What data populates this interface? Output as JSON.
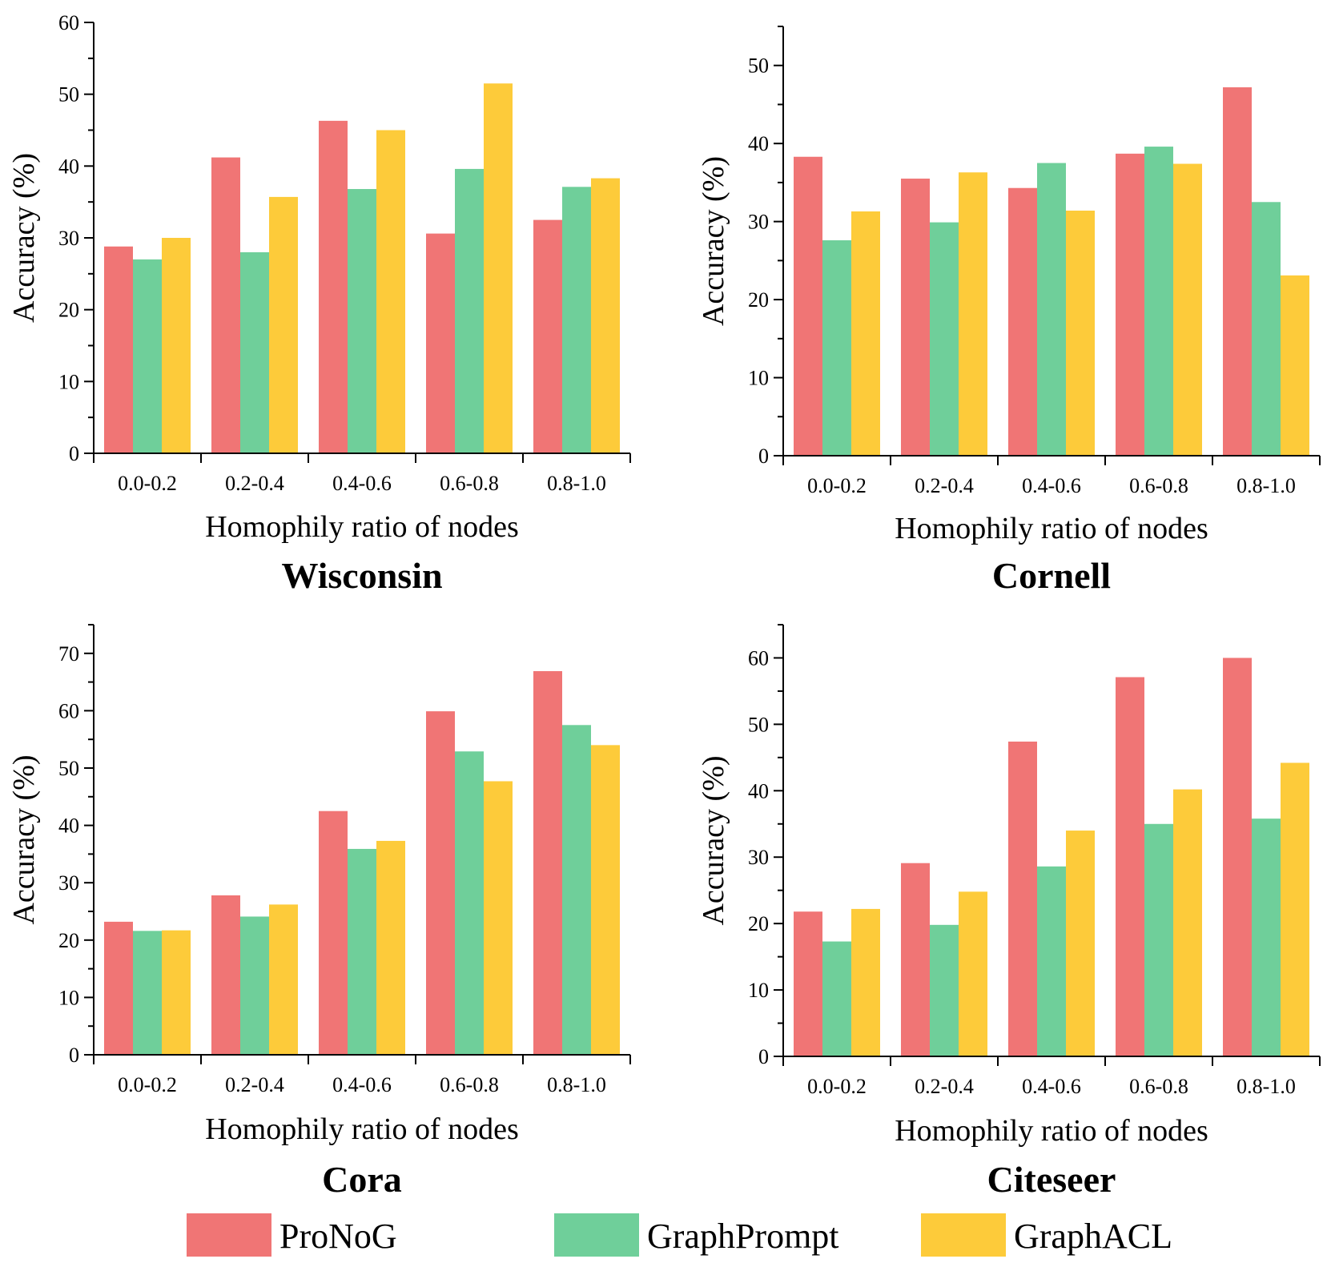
{
  "colors": {
    "ProNoG": "#F07575",
    "GraphPrompt": "#6FCF9A",
    "GraphACL": "#FDCB3A",
    "axis": "#000000"
  },
  "legend": [
    "ProNoG",
    "GraphPrompt",
    "GraphACL"
  ],
  "chart_data": [
    {
      "type": "bar",
      "title": "Wisconsin",
      "xlabel": "Homophily ratio of nodes",
      "ylabel": "Accuracy (%)",
      "categories": [
        "0.0-0.2",
        "0.2-0.4",
        "0.4-0.6",
        "0.6-0.8",
        "0.8-1.0"
      ],
      "ylim": [
        0,
        60
      ],
      "yticks": [
        0,
        10,
        20,
        30,
        40,
        50,
        60
      ],
      "series": [
        {
          "name": "ProNoG",
          "values": [
            28.8,
            41.2,
            46.3,
            30.6,
            32.5
          ]
        },
        {
          "name": "GraphPrompt",
          "values": [
            27.0,
            28.0,
            36.8,
            39.6,
            37.1
          ]
        },
        {
          "name": "GraphACL",
          "values": [
            30.0,
            35.7,
            45.0,
            51.5,
            38.3
          ]
        }
      ]
    },
    {
      "type": "bar",
      "title": "Cornell",
      "xlabel": "Homophily ratio of nodes",
      "ylabel": "Accuracy (%)",
      "categories": [
        "0.0-0.2",
        "0.2-0.4",
        "0.4-0.6",
        "0.6-0.8",
        "0.8-1.0"
      ],
      "ylim": [
        0,
        55
      ],
      "yticks": [
        0,
        10,
        20,
        30,
        40,
        50
      ],
      "series": [
        {
          "name": "ProNoG",
          "values": [
            38.3,
            35.5,
            34.3,
            38.7,
            47.2
          ]
        },
        {
          "name": "GraphPrompt",
          "values": [
            27.6,
            29.9,
            37.5,
            39.6,
            32.5
          ]
        },
        {
          "name": "GraphACL",
          "values": [
            31.3,
            36.3,
            31.4,
            37.4,
            23.1
          ]
        }
      ]
    },
    {
      "type": "bar",
      "title": "Cora",
      "xlabel": "Homophily ratio of nodes",
      "ylabel": "Accuracy (%)",
      "categories": [
        "0.0-0.2",
        "0.2-0.4",
        "0.4-0.6",
        "0.6-0.8",
        "0.8-1.0"
      ],
      "ylim": [
        0,
        75
      ],
      "yticks": [
        0,
        10,
        20,
        30,
        40,
        50,
        60,
        70
      ],
      "series": [
        {
          "name": "ProNoG",
          "values": [
            23.2,
            27.8,
            42.5,
            59.9,
            66.9
          ]
        },
        {
          "name": "GraphPrompt",
          "values": [
            21.6,
            24.1,
            35.9,
            52.9,
            57.5
          ]
        },
        {
          "name": "GraphACL",
          "values": [
            21.7,
            26.2,
            37.3,
            47.7,
            54.0
          ]
        }
      ]
    },
    {
      "type": "bar",
      "title": "Citeseer",
      "xlabel": "Homophily ratio of nodes",
      "ylabel": "Accuracy (%)",
      "categories": [
        "0.0-0.2",
        "0.2-0.4",
        "0.4-0.6",
        "0.6-0.8",
        "0.8-1.0"
      ],
      "ylim": [
        0,
        65
      ],
      "yticks": [
        0,
        10,
        20,
        30,
        40,
        50,
        60
      ],
      "series": [
        {
          "name": "ProNoG",
          "values": [
            21.8,
            29.1,
            47.4,
            57.1,
            60.0
          ]
        },
        {
          "name": "GraphPrompt",
          "values": [
            17.3,
            19.8,
            28.6,
            35.0,
            35.8
          ]
        },
        {
          "name": "GraphACL",
          "values": [
            22.2,
            24.8,
            34.0,
            40.2,
            44.2
          ]
        }
      ]
    }
  ]
}
